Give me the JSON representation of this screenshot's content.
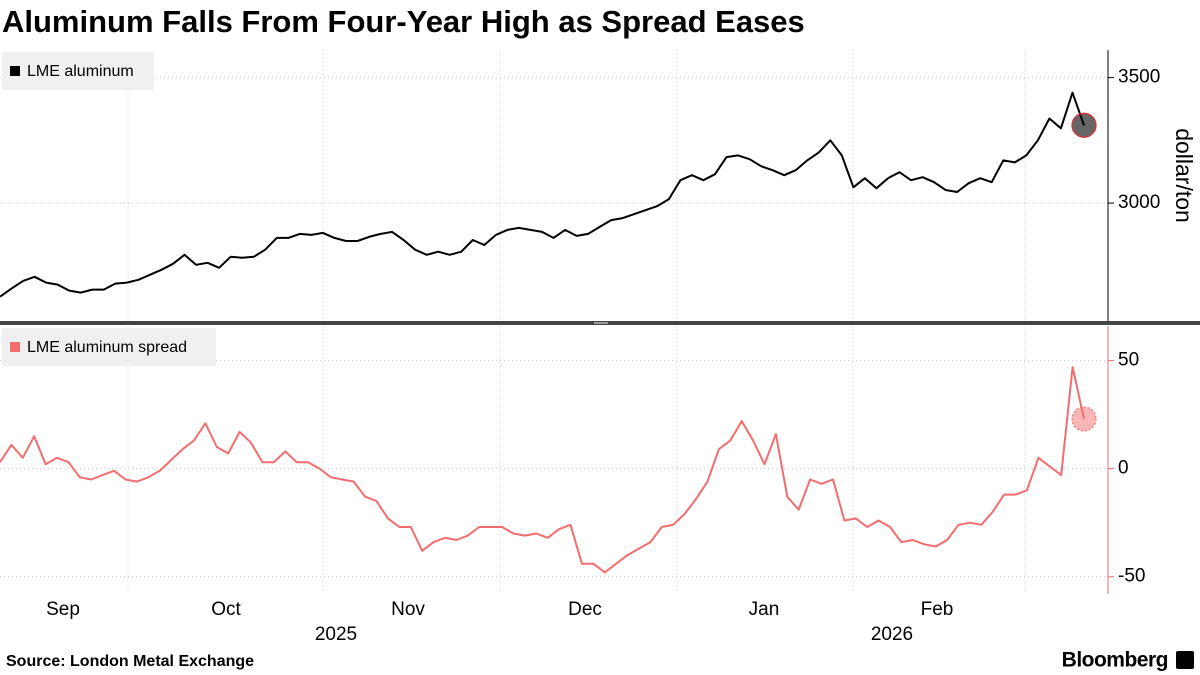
{
  "title": "Aluminum Falls From Four-Year High as Spread Eases",
  "source": "Source: London Metal Exchange",
  "brand": "Bloomberg",
  "month_labels": [
    "Sep",
    "Oct",
    "Nov",
    "Dec",
    "Jan",
    "Feb"
  ],
  "year_labels": [
    "2025",
    "2026"
  ],
  "chart_data": [
    {
      "type": "line",
      "y_label": "dollar/ton",
      "series": [
        {
          "name": "LME aluminum",
          "color": "#000000",
          "values": [
            2627,
            2659,
            2690,
            2706,
            2683,
            2675,
            2651,
            2643,
            2655,
            2655,
            2679,
            2683,
            2694,
            2714,
            2734,
            2758,
            2794,
            2754,
            2762,
            2742,
            2786,
            2782,
            2786,
            2814,
            2861,
            2861,
            2877,
            2873,
            2881,
            2861,
            2849,
            2849,
            2865,
            2877,
            2885,
            2853,
            2814,
            2794,
            2806,
            2794,
            2806,
            2853,
            2833,
            2873,
            2893,
            2901,
            2893,
            2885,
            2861,
            2893,
            2869,
            2877,
            2905,
            2932,
            2940,
            2956,
            2972,
            2988,
            3016,
            3091,
            3111,
            3091,
            3115,
            3183,
            3190,
            3175,
            3147,
            3131,
            3111,
            3131,
            3170,
            3202,
            3250,
            3190,
            3063,
            3099,
            3059,
            3099,
            3123,
            3091,
            3103,
            3083,
            3052,
            3044,
            3079,
            3099,
            3083,
            3170,
            3162,
            3190,
            3250,
            3337,
            3298,
            3440,
            3310
          ]
        }
      ],
      "ylim": [
        2530,
        3610
      ],
      "yticks": [
        3000,
        3500
      ],
      "grid": true
    },
    {
      "type": "line",
      "series": [
        {
          "name": "LME aluminum spread",
          "color": "#f26d6d",
          "values": [
            3,
            11,
            5,
            15,
            2,
            5,
            3,
            -4,
            -5,
            -3,
            -1,
            -5,
            -6,
            -4,
            -1,
            4,
            9,
            13,
            21,
            10,
            7,
            17,
            12,
            3,
            3,
            8,
            3,
            3,
            0,
            -4,
            -5,
            -6,
            -13,
            -15,
            -23,
            -27,
            -27,
            -38,
            -34,
            -32,
            -33,
            -31,
            -27,
            -27,
            -27,
            -30,
            -31,
            -30,
            -32,
            -28,
            -26,
            -44,
            -44,
            -48,
            -44,
            -40,
            -37,
            -34,
            -27,
            -26,
            -21,
            -14,
            -6,
            9,
            13,
            22,
            13,
            2,
            16,
            -13,
            -19,
            -5,
            -7,
            -5,
            -24,
            -23,
            -27,
            -24,
            -27,
            -34,
            -33,
            -35,
            -36,
            -33,
            -26,
            -25,
            -26,
            -20,
            -12,
            -12,
            -10,
            5,
            1,
            -3,
            47,
            23
          ]
        }
      ],
      "ylim": [
        -58,
        66
      ],
      "yticks": [
        -50,
        0,
        50
      ],
      "grid": true
    }
  ]
}
